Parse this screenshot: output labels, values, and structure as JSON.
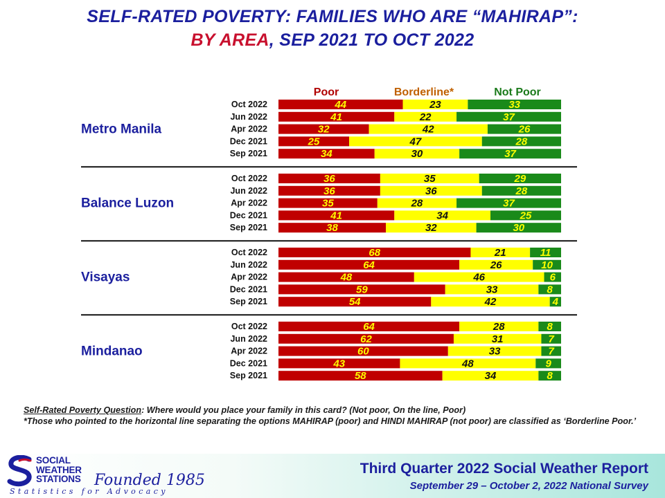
{
  "title": {
    "line1": "SELF-RATED POVERTY: FAMILIES WHO ARE “MAHIRAP”:",
    "line2_red": "BY AREA",
    "line2_comma": ",",
    "line2_rest": " SEP 2021 TO OCT 2022"
  },
  "colors": {
    "poor": "#c00000",
    "borderline": "#ffff00",
    "not_poor": "#1a8a1a",
    "title_blue": "#1b1f9e",
    "title_red": "#c8102e",
    "label_poor": "#b00000",
    "label_borderline": "#c06000",
    "label_not_poor": "#1a7a1a"
  },
  "chart_data": {
    "type": "bar",
    "orientation": "horizontal",
    "stacked": true,
    "legend": [
      "Poor",
      "Borderline*",
      "Not Poor"
    ],
    "legend_placement": "top",
    "xlim": [
      0,
      100
    ],
    "groups": [
      {
        "name": "Metro Manila",
        "rows": [
          {
            "label": "Oct 2022",
            "values": [
              44,
              23,
              33
            ]
          },
          {
            "label": "Jun 2022",
            "values": [
              41,
              22,
              37
            ]
          },
          {
            "label": "Apr 2022",
            "values": [
              32,
              42,
              26
            ]
          },
          {
            "label": "Dec 2021",
            "values": [
              25,
              47,
              28
            ]
          },
          {
            "label": "Sep 2021",
            "values": [
              34,
              30,
              37
            ]
          }
        ]
      },
      {
        "name": "Balance  Luzon",
        "rows": [
          {
            "label": "Oct 2022",
            "values": [
              36,
              35,
              29
            ]
          },
          {
            "label": "Jun 2022",
            "values": [
              36,
              36,
              28
            ]
          },
          {
            "label": "Apr 2022",
            "values": [
              35,
              28,
              37
            ]
          },
          {
            "label": "Dec 2021",
            "values": [
              41,
              34,
              25
            ]
          },
          {
            "label": "Sep 2021",
            "values": [
              38,
              32,
              30
            ]
          }
        ]
      },
      {
        "name": "Visayas",
        "rows": [
          {
            "label": "Oct 2022",
            "values": [
              68,
              21,
              11
            ]
          },
          {
            "label": "Jun 2022",
            "values": [
              64,
              26,
              10
            ]
          },
          {
            "label": "Apr 2022",
            "values": [
              48,
              46,
              6
            ]
          },
          {
            "label": "Dec 2021",
            "values": [
              59,
              33,
              8
            ]
          },
          {
            "label": "Sep 2021",
            "values": [
              54,
              42,
              4
            ]
          }
        ]
      },
      {
        "name": "Mindanao",
        "rows": [
          {
            "label": "Oct 2022",
            "values": [
              64,
              28,
              8
            ]
          },
          {
            "label": "Jun 2022",
            "values": [
              62,
              31,
              7
            ]
          },
          {
            "label": "Apr 2022",
            "values": [
              60,
              33,
              7
            ]
          },
          {
            "label": "Dec 2021",
            "values": [
              43,
              48,
              9
            ]
          },
          {
            "label": "Sep 2021",
            "values": [
              58,
              34,
              8
            ]
          }
        ]
      }
    ]
  },
  "footnote": {
    "question_label": "Self-Rated Poverty Question",
    "question_text": ":  Where would you place your family in this card?  (Not poor, On the line, Poor)",
    "borderline_note": "*Those who pointed to the horizontal line separating the options MAHIRAP (poor) and HINDI MAHIRAP (not poor) are classified as ‘Borderline Poor.’"
  },
  "footer": {
    "logo_line1": "SOCIAL",
    "logo_line2": "WEATHER",
    "logo_line3": "STATIONS",
    "founded": "Founded 1985",
    "tagline": "Statistics for Advocacy",
    "report_title": "Third Quarter 2022 Social Weather Report",
    "report_subtitle": "September 29 – October 2, 2022 National Survey"
  }
}
